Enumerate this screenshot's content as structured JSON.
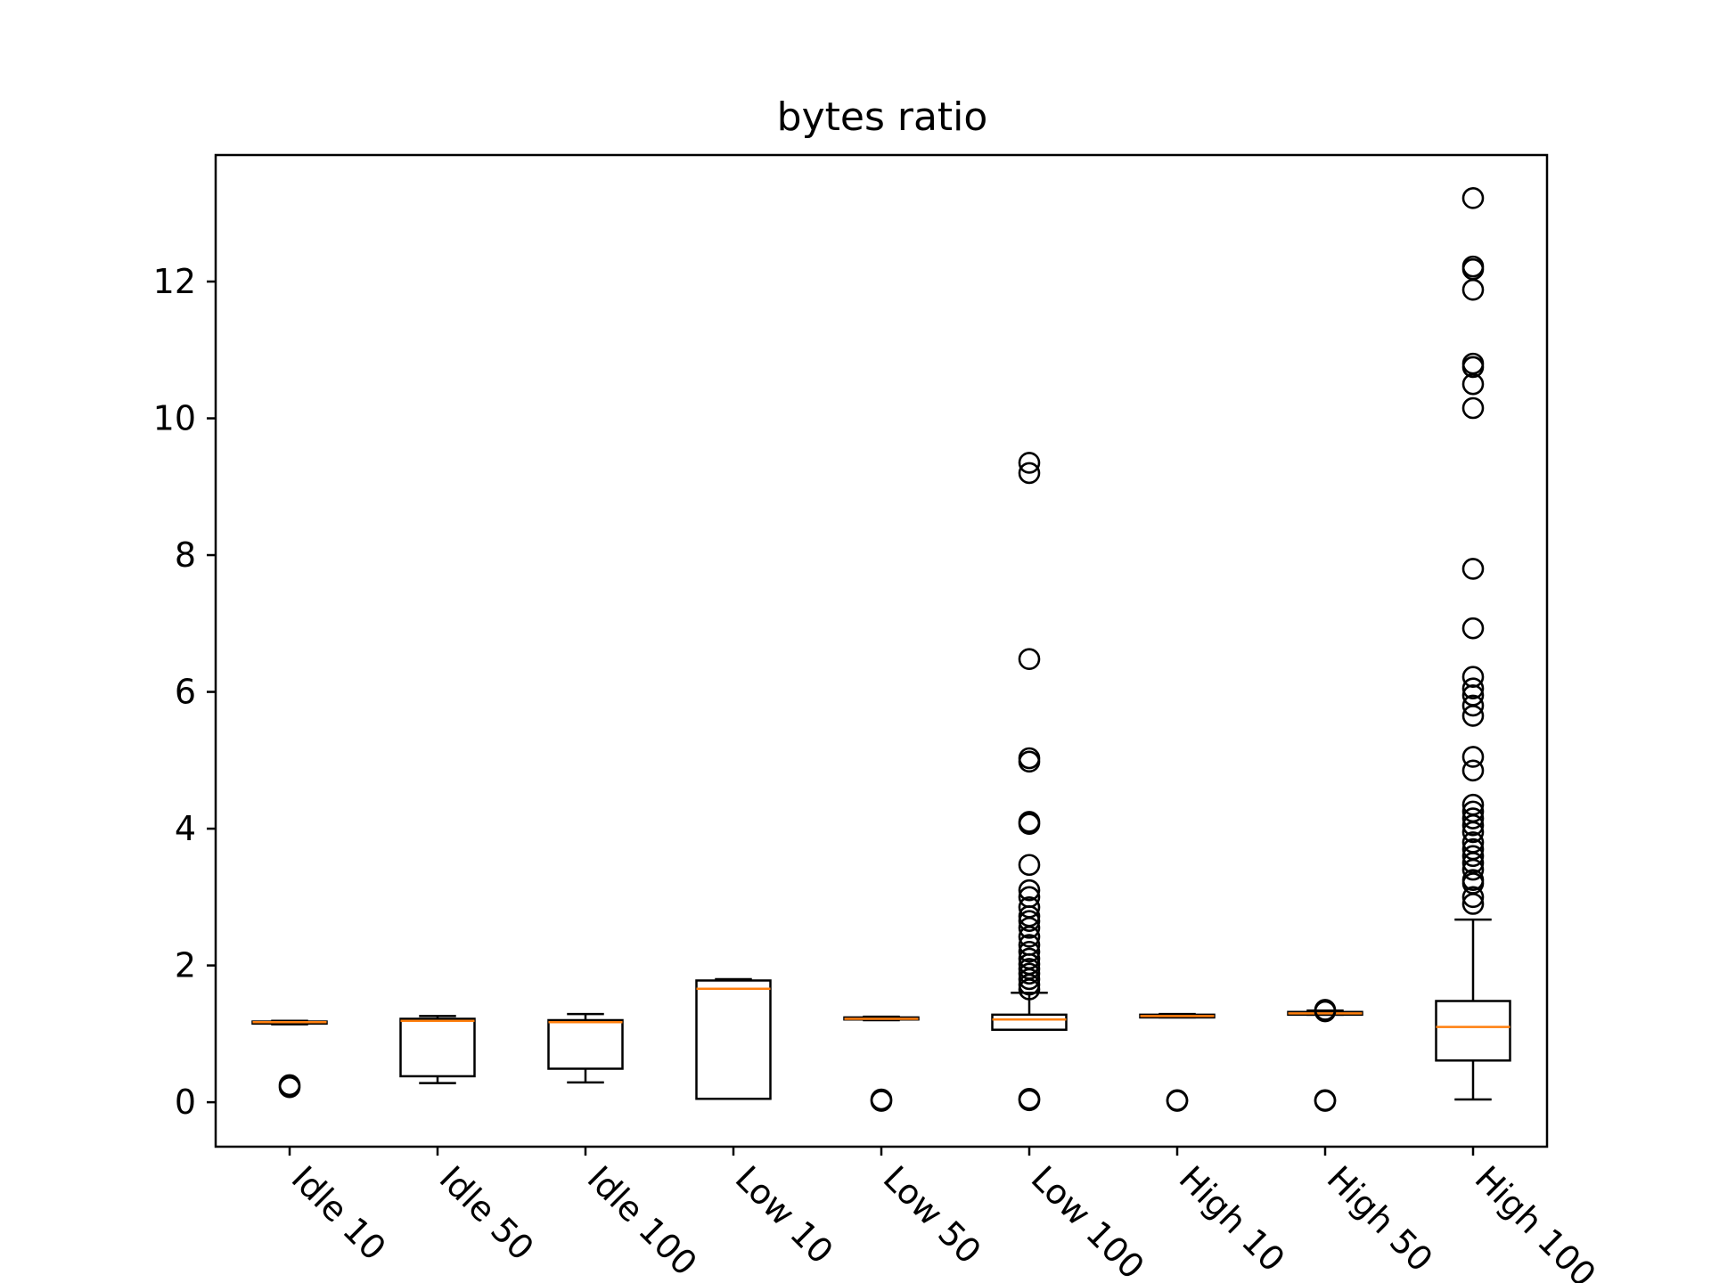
{
  "chart_data": {
    "type": "boxplot",
    "title": "bytes ratio",
    "xlabel": "",
    "ylabel": "",
    "ylim": [
      -0.65,
      13.85
    ],
    "yticks": [
      0,
      2,
      4,
      6,
      8,
      10,
      12
    ],
    "xtick_rotation": -45,
    "grid": false,
    "legend": "none",
    "colors": {
      "box": "#000000",
      "median": "#ff7f0e",
      "flier": "#000000"
    },
    "categories": [
      "Idle 10",
      "Idle 50",
      "Idle 100",
      "Low 10",
      "Low 50",
      "Low 100",
      "High 10",
      "High 50",
      "High 100"
    ],
    "boxes": [
      {
        "label": "Idle 10",
        "whislo": 1.14,
        "q1": 1.15,
        "med": 1.17,
        "q3": 1.18,
        "whishi": 1.19,
        "fliers": [
          0.22,
          0.25
        ]
      },
      {
        "label": "Idle 50",
        "whislo": 0.28,
        "q1": 0.38,
        "med": 1.19,
        "q3": 1.22,
        "whishi": 1.26,
        "fliers": []
      },
      {
        "label": "Idle 100",
        "whislo": 0.29,
        "q1": 0.49,
        "med": 1.17,
        "q3": 1.2,
        "whishi": 1.29,
        "fliers": []
      },
      {
        "label": "Low 10",
        "whislo": 0.05,
        "q1": 0.05,
        "med": 1.66,
        "q3": 1.78,
        "whishi": 1.8,
        "fliers": []
      },
      {
        "label": "Low 50",
        "whislo": 1.2,
        "q1": 1.21,
        "med": 1.22,
        "q3": 1.24,
        "whishi": 1.25,
        "fliers": [
          0.02,
          0.04
        ]
      },
      {
        "label": "Low 100",
        "whislo": 1.06,
        "q1": 1.06,
        "med": 1.21,
        "q3": 1.28,
        "whishi": 1.6,
        "fliers": [
          0.03,
          0.05,
          1.65,
          1.72,
          1.8,
          1.88,
          1.95,
          2.02,
          2.1,
          2.2,
          2.3,
          2.42,
          2.55,
          2.65,
          2.72,
          2.85,
          3.0,
          3.1,
          3.47,
          4.07,
          4.1,
          4.98,
          5.03,
          6.48,
          9.2,
          9.35
        ]
      },
      {
        "label": "High 10",
        "whislo": 1.24,
        "q1": 1.24,
        "med": 1.26,
        "q3": 1.28,
        "whishi": 1.29,
        "fliers": [
          0.02,
          0.03
        ]
      },
      {
        "label": "High 50",
        "whislo": 1.28,
        "q1": 1.28,
        "med": 1.3,
        "q3": 1.32,
        "whishi": 1.34,
        "fliers": [
          0.02,
          0.03,
          1.33,
          1.35
        ]
      },
      {
        "label": "High 100",
        "whislo": 0.04,
        "q1": 0.61,
        "med": 1.1,
        "q3": 1.48,
        "whishi": 2.67,
        "fliers": [
          2.9,
          3.0,
          3.2,
          3.25,
          3.4,
          3.5,
          3.6,
          3.7,
          3.8,
          3.95,
          4.05,
          4.15,
          4.25,
          4.35,
          4.85,
          5.05,
          5.65,
          5.8,
          5.95,
          6.05,
          6.22,
          6.93,
          7.8,
          10.15,
          10.5,
          10.75,
          10.8,
          11.88,
          12.18,
          12.22,
          13.22
        ]
      }
    ]
  }
}
